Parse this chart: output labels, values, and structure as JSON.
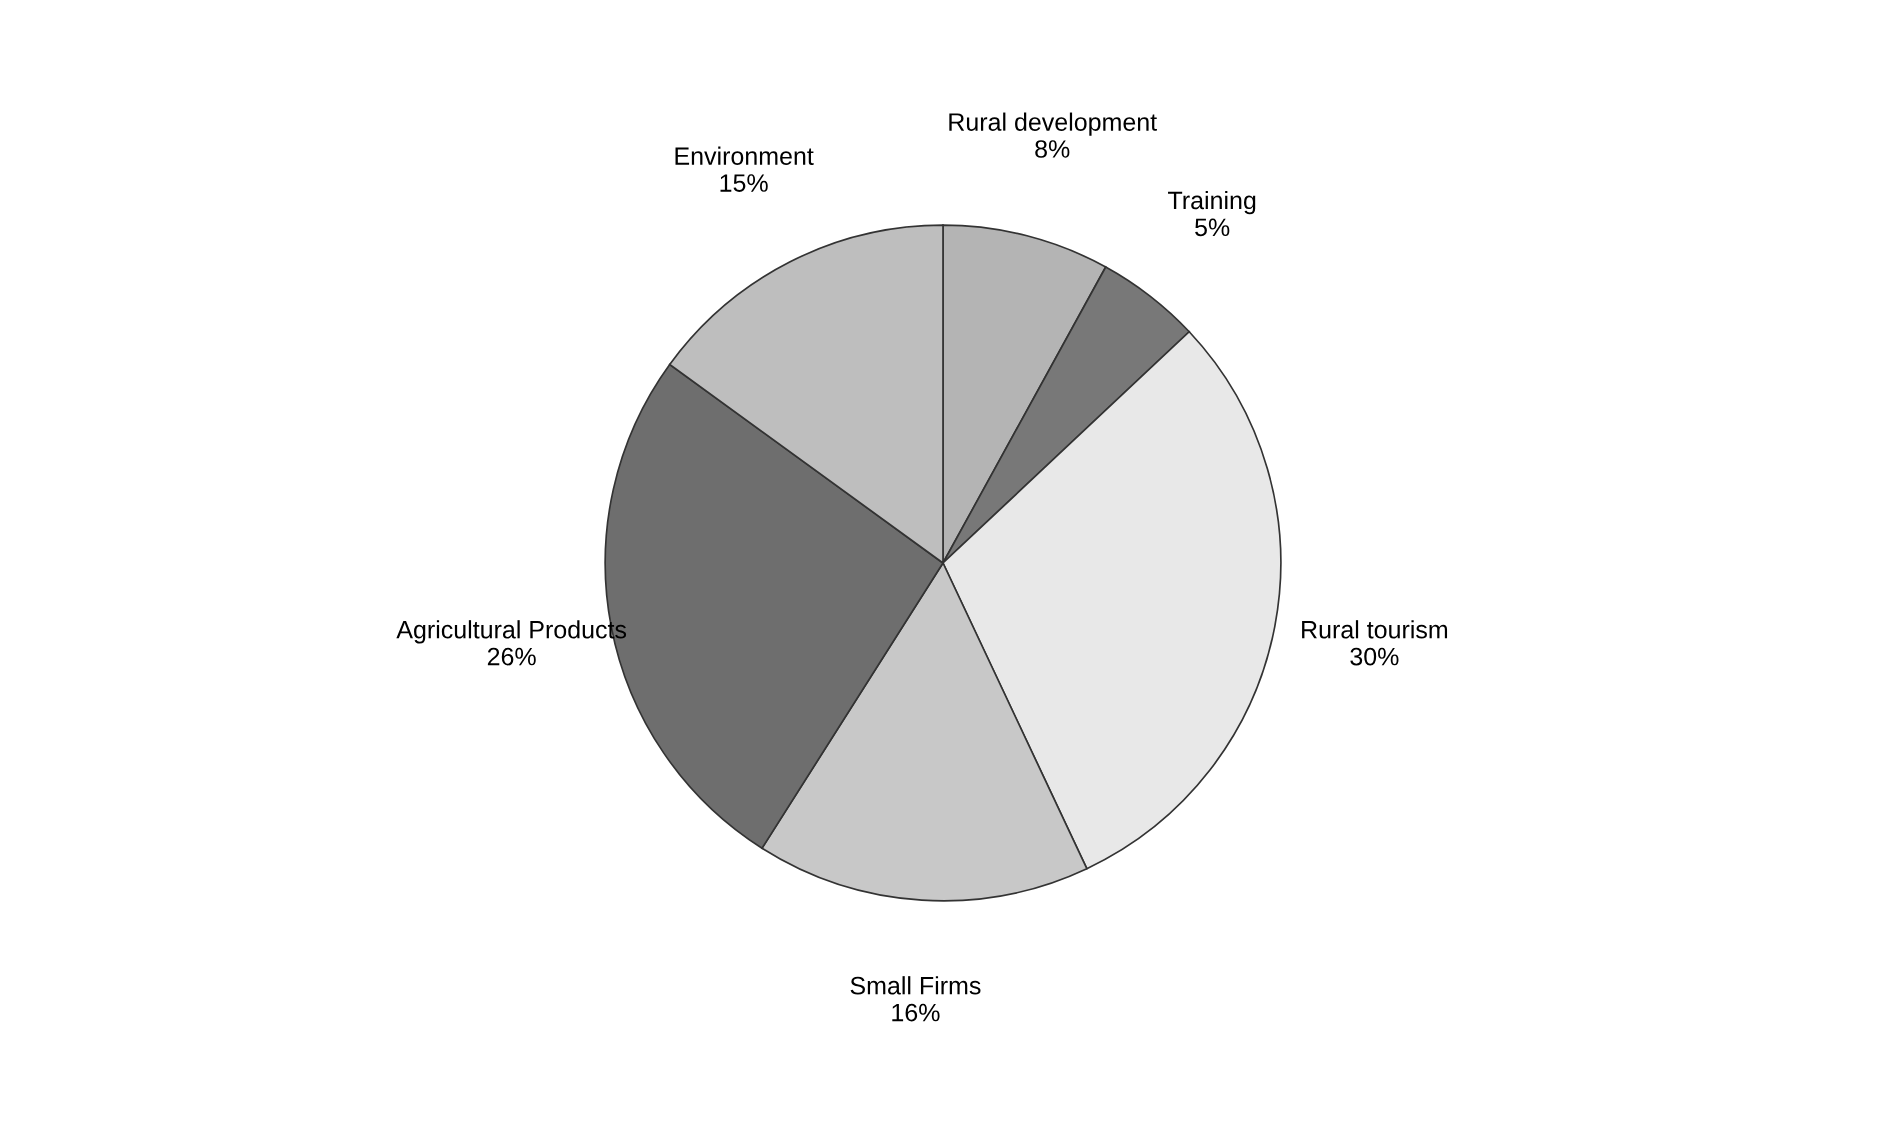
{
  "chart_data": {
    "type": "pie",
    "categories": [
      "Rural development",
      "Training",
      "Rural tourism",
      "Small Firms",
      "Agricultural Products",
      "Environment"
    ],
    "values": [
      8,
      5,
      30,
      16,
      26,
      15
    ],
    "value_labels": [
      "8%",
      "5%",
      "30%",
      "16%",
      "26%",
      "15%"
    ],
    "colors": [
      "#b4b4b4",
      "#787878",
      "#e8e8e8",
      "#c8c8c8",
      "#6e6e6e",
      "#bebebe"
    ],
    "legend": false
  }
}
